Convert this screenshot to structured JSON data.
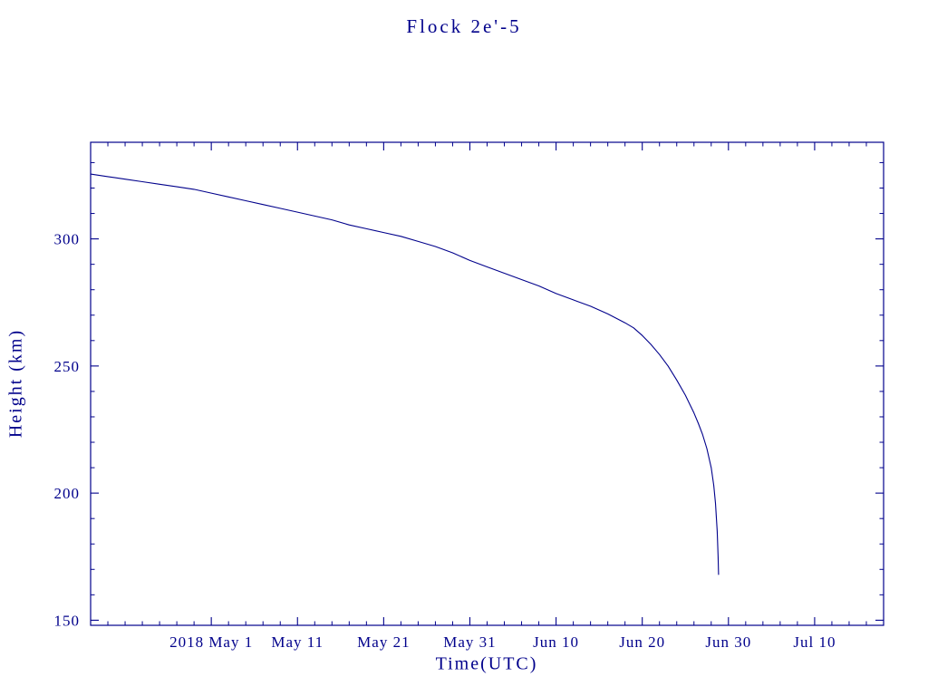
{
  "page": {
    "background": "#ffffff"
  },
  "colors": {
    "accent": "#00008b",
    "line": "#00008b",
    "frame": "#00008b"
  },
  "chart_data": {
    "type": "line",
    "title": "Flock 2e'-5",
    "xlabel": "Time(UTC)",
    "ylabel": "Height (km)",
    "x_epoch": "2018-04-17",
    "xlim_days": [
      0,
      92
    ],
    "ylim": [
      148,
      338
    ],
    "grid": false,
    "legend": "none",
    "y_ticks": [
      {
        "label": "150",
        "value": 150
      },
      {
        "label": "200",
        "value": 200
      },
      {
        "label": "250",
        "value": 250
      },
      {
        "label": "300",
        "value": 300
      }
    ],
    "x_ticks": [
      {
        "label": "2018 May 1",
        "day": 14
      },
      {
        "label": "May 11",
        "day": 24
      },
      {
        "label": "May 21",
        "day": 34
      },
      {
        "label": "May 31",
        "day": 44
      },
      {
        "label": "Jun 10",
        "day": 54
      },
      {
        "label": "Jun 20",
        "day": 64
      },
      {
        "label": "Jun 30",
        "day": 74
      },
      {
        "label": "Jul 10",
        "day": 84
      }
    ],
    "minor_tick_step_days": 2,
    "minor_tick_step_km": 10,
    "series": [
      {
        "name": "height_km",
        "color": "#00008b",
        "points": [
          [
            0,
            325.5
          ],
          [
            2,
            324.5
          ],
          [
            4,
            323.5
          ],
          [
            6,
            322.5
          ],
          [
            8,
            321.5
          ],
          [
            10,
            320.5
          ],
          [
            12,
            319.5
          ],
          [
            14,
            318
          ],
          [
            16,
            316.5
          ],
          [
            18,
            315
          ],
          [
            20,
            313.5
          ],
          [
            22,
            312
          ],
          [
            24,
            310.5
          ],
          [
            26,
            309
          ],
          [
            28,
            307.5
          ],
          [
            30,
            305.5
          ],
          [
            32,
            304
          ],
          [
            34,
            302.5
          ],
          [
            36,
            301
          ],
          [
            38,
            299
          ],
          [
            40,
            297
          ],
          [
            42,
            294.5
          ],
          [
            44,
            291.5
          ],
          [
            46,
            289
          ],
          [
            48,
            286.5
          ],
          [
            50,
            284
          ],
          [
            52,
            281.5
          ],
          [
            54,
            278.5
          ],
          [
            56,
            276
          ],
          [
            58,
            273.5
          ],
          [
            60,
            270.5
          ],
          [
            62,
            267
          ],
          [
            63,
            265
          ],
          [
            64,
            262
          ],
          [
            65,
            258.5
          ],
          [
            66,
            254.5
          ],
          [
            67,
            250
          ],
          [
            68,
            244.5
          ],
          [
            69,
            238.5
          ],
          [
            70,
            231.5
          ],
          [
            70.5,
            227.5
          ],
          [
            71,
            223
          ],
          [
            71.5,
            217.5
          ],
          [
            72,
            210
          ],
          [
            72.3,
            203
          ],
          [
            72.5,
            196
          ],
          [
            72.7,
            185
          ],
          [
            72.8,
            175
          ],
          [
            72.85,
            168
          ]
        ]
      }
    ]
  }
}
